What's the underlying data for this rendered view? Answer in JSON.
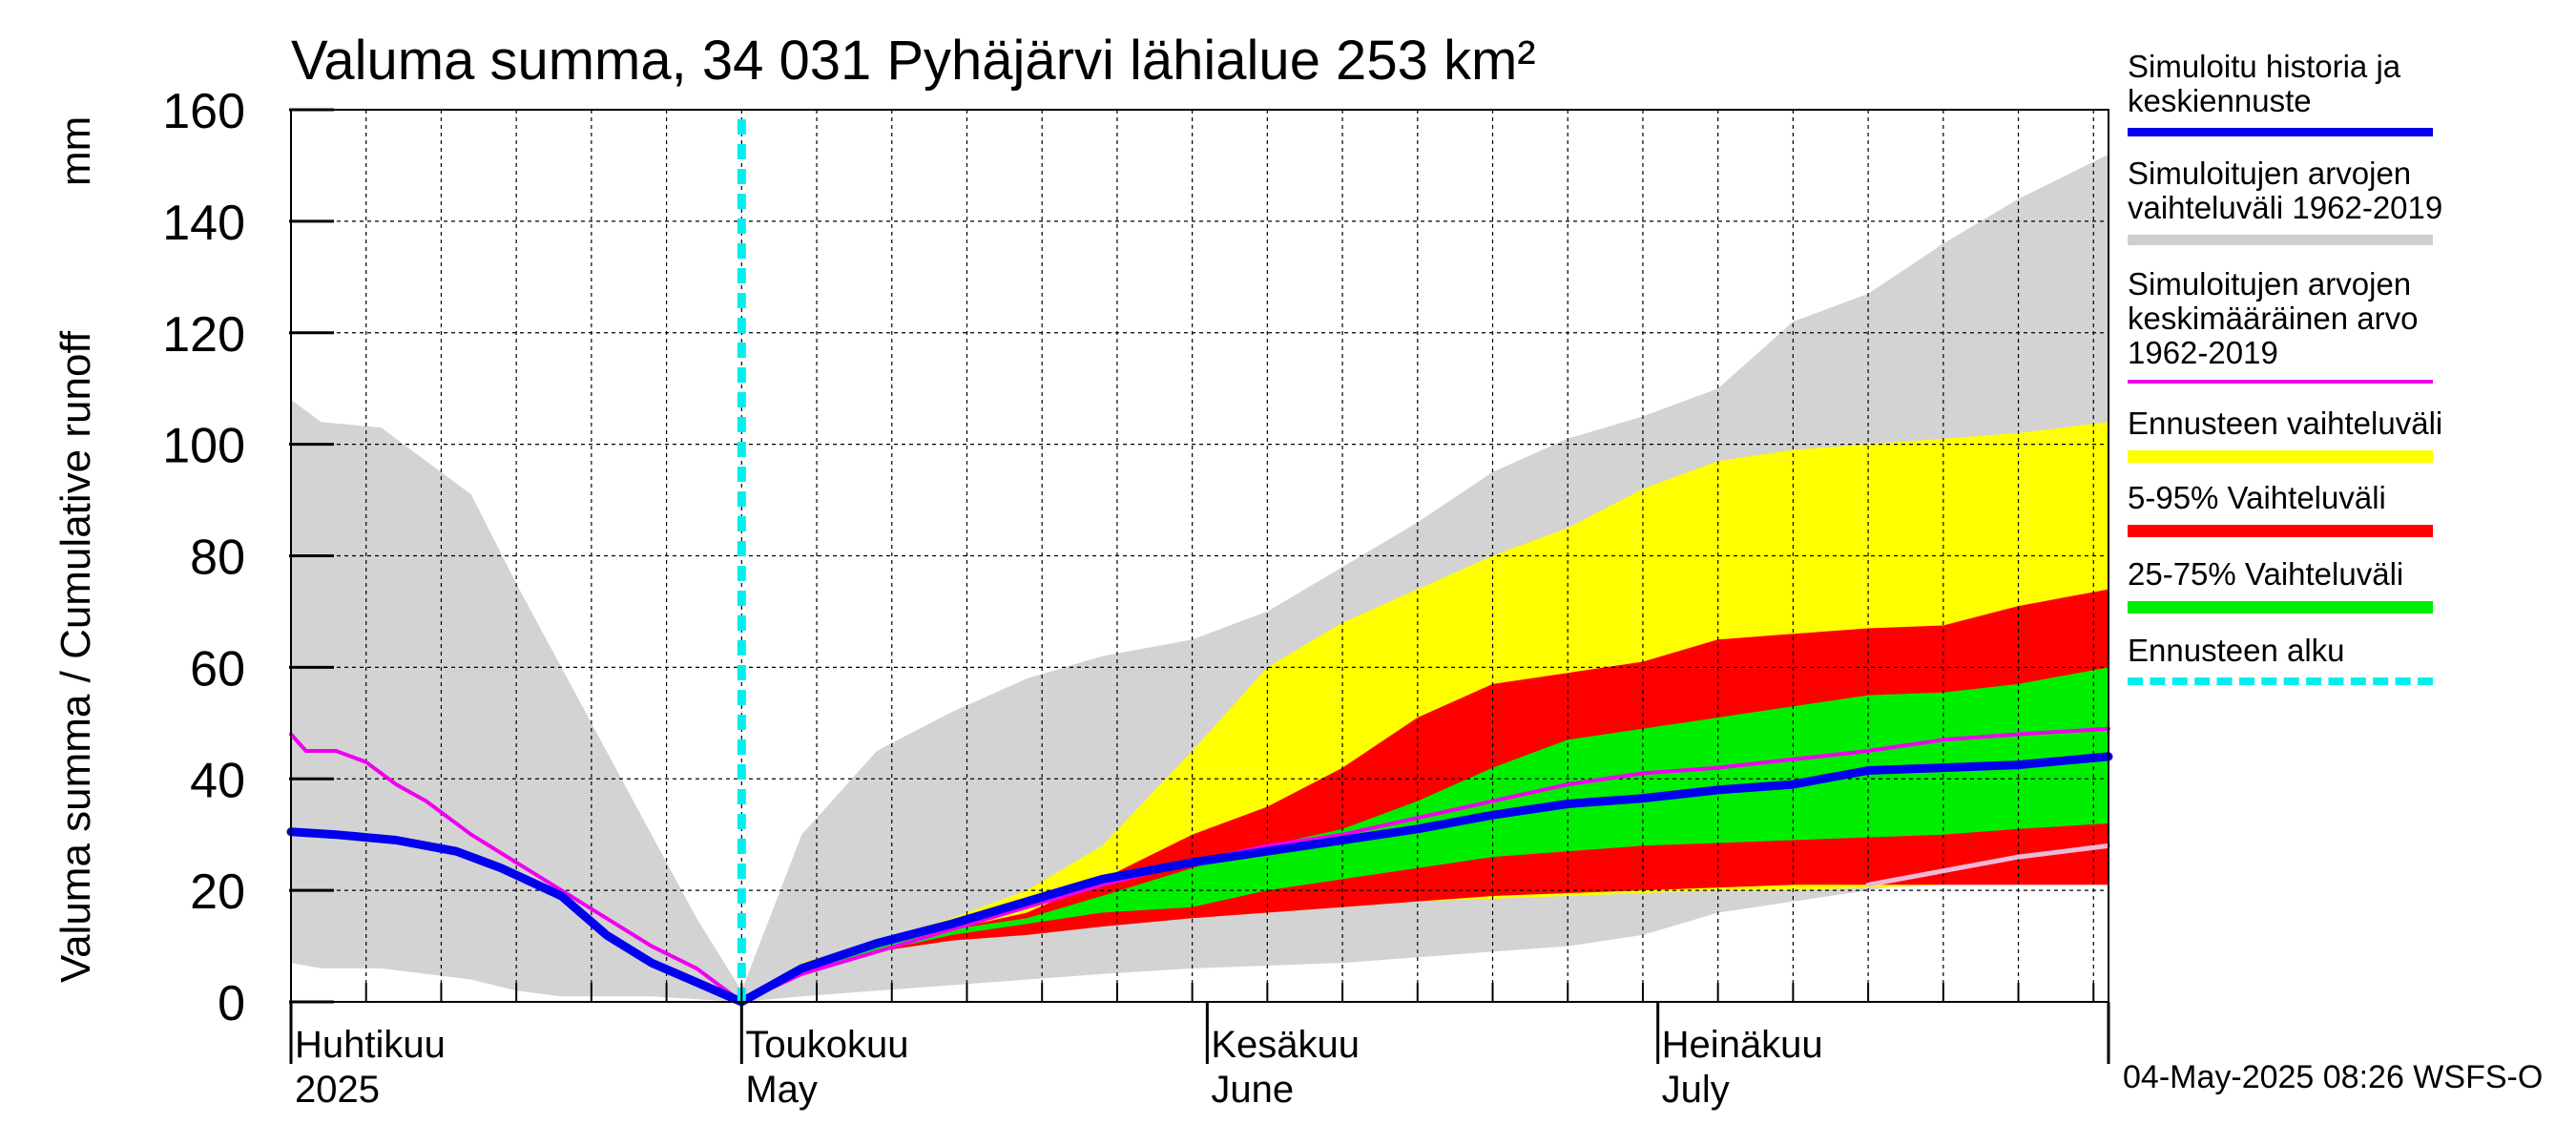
{
  "title": "Valuma summa, 34 031 Pyhäjärvi lähialue 253 km²",
  "ylabel": "Valuma summa / Cumulative runoff",
  "yunit": "mm",
  "timestamp": "04-May-2025 08:26 WSFS-O",
  "legend": [
    {
      "label": "Simuloitu historia ja\nkeskiennuste",
      "color": "#0000ee",
      "style": "solid"
    },
    {
      "label": "Simuloitujen arvojen\nvaihteluväli 1962-2019",
      "color": "#cfcfcf",
      "style": "solid"
    },
    {
      "label": "Simuloitujen arvojen\nkeskimääräinen arvo\n   1962-2019",
      "color": "#ee00ee",
      "style": "thin"
    },
    {
      "label": "Ennusteen vaihteluväli",
      "color": "#ffff00",
      "style": "solid"
    },
    {
      "label": "5-95% Vaihteluväli",
      "color": "#ff0000",
      "style": "solid"
    },
    {
      "label": "25-75% Vaihteluväli",
      "color": "#00ee00",
      "style": "solid"
    },
    {
      "label": "Ennusteen alku",
      "color": "#00eeee",
      "style": "dashed"
    }
  ],
  "chart_data": {
    "type": "area",
    "title": "Valuma summa, 34 031 Pyhäjärvi lähialue 253 km²",
    "ylabel": "Valuma summa / Cumulative runoff    mm",
    "ylim": [
      0,
      160
    ],
    "yticks": [
      0,
      20,
      40,
      60,
      80,
      100,
      120,
      140,
      160
    ],
    "xlim": [
      "2025-04-01",
      "2025-07-31"
    ],
    "x_month_labels": [
      {
        "date": "2025-04-01",
        "fi": "Huhtikuu",
        "en": "2025"
      },
      {
        "date": "2025-05-01",
        "fi": "Toukokuu",
        "en": "May"
      },
      {
        "date": "2025-06-01",
        "fi": "Kesäkuu",
        "en": "June"
      },
      {
        "date": "2025-07-01",
        "fi": "Heinäkuu",
        "en": "July"
      }
    ],
    "grid": true,
    "legend_position": "right",
    "forecast_start": "2025-05-01",
    "series": [
      {
        "name": "Simuloitujen arvojen vaihteluväli 1962-2019",
        "kind": "band",
        "color": "#d3d3d3",
        "x": [
          "2025-04-01",
          "2025-04-03",
          "2025-04-07",
          "2025-04-10",
          "2025-04-13",
          "2025-04-16",
          "2025-04-19",
          "2025-04-22",
          "2025-04-25",
          "2025-04-28",
          "2025-05-01",
          "2025-05-05",
          "2025-05-10",
          "2025-05-15",
          "2025-05-20",
          "2025-05-25",
          "2025-05-31",
          "2025-06-05",
          "2025-06-10",
          "2025-06-15",
          "2025-06-20",
          "2025-06-25",
          "2025-06-30",
          "2025-07-05",
          "2025-07-10",
          "2025-07-15",
          "2025-07-20",
          "2025-07-25",
          "2025-07-31"
        ],
        "low": [
          7,
          6,
          6,
          5,
          4,
          2,
          1,
          1,
          1,
          0.5,
          0,
          1,
          2,
          3,
          4,
          5,
          6,
          6.5,
          7,
          8,
          9,
          10,
          12,
          16,
          18,
          20,
          22,
          24,
          27
        ],
        "high": [
          108,
          104,
          103,
          97,
          91,
          75,
          60,
          45,
          30,
          15,
          2,
          30,
          45,
          52,
          58,
          62,
          65,
          70,
          78,
          86,
          95,
          101,
          105,
          110,
          122,
          127,
          136,
          144,
          152
        ]
      },
      {
        "name": "Ennusteen vaihteluväli",
        "kind": "band",
        "color": "#ffff00",
        "x": [
          "2025-05-01",
          "2025-05-05",
          "2025-05-10",
          "2025-05-15",
          "2025-05-20",
          "2025-05-25",
          "2025-05-31",
          "2025-06-05",
          "2025-06-10",
          "2025-06-15",
          "2025-06-20",
          "2025-06-25",
          "2025-06-30",
          "2025-07-05",
          "2025-07-10",
          "2025-07-15",
          "2025-07-20",
          "2025-07-25",
          "2025-07-31"
        ],
        "low": [
          0,
          5,
          9,
          11,
          13,
          14,
          15,
          16,
          17,
          18,
          18.5,
          19,
          19.5,
          20,
          20,
          20.5,
          21,
          21,
          21
        ],
        "high": [
          0,
          7,
          11,
          15,
          20,
          28,
          45,
          60,
          68,
          74,
          80,
          85,
          92,
          97,
          99,
          100,
          101,
          102,
          104
        ]
      },
      {
        "name": "5-95% Vaihteluväli",
        "kind": "band",
        "color": "#ff0000",
        "x": [
          "2025-05-01",
          "2025-05-05",
          "2025-05-10",
          "2025-05-15",
          "2025-05-20",
          "2025-05-25",
          "2025-05-31",
          "2025-06-05",
          "2025-06-10",
          "2025-06-15",
          "2025-06-20",
          "2025-06-25",
          "2025-06-30",
          "2025-07-05",
          "2025-07-10",
          "2025-07-15",
          "2025-07-20",
          "2025-07-25",
          "2025-07-31"
        ],
        "low": [
          0,
          5,
          9,
          11,
          12,
          13.5,
          15,
          16,
          17,
          18,
          19,
          19.5,
          20,
          20.5,
          21,
          21,
          21,
          21,
          21
        ],
        "high": [
          0,
          6,
          10,
          13,
          16,
          22,
          30,
          35,
          42,
          51,
          57,
          59,
          61,
          65,
          66,
          67,
          67.5,
          71,
          74
        ]
      },
      {
        "name": "25-75% Vaihteluväli",
        "kind": "band",
        "color": "#00ee00",
        "x": [
          "2025-05-01",
          "2025-05-05",
          "2025-05-10",
          "2025-05-15",
          "2025-05-20",
          "2025-05-25",
          "2025-05-31",
          "2025-06-05",
          "2025-06-10",
          "2025-06-15",
          "2025-06-20",
          "2025-06-25",
          "2025-06-30",
          "2025-07-05",
          "2025-07-10",
          "2025-07-15",
          "2025-07-20",
          "2025-07-25",
          "2025-07-31"
        ],
        "low": [
          0,
          5.5,
          9,
          12,
          14,
          16,
          17,
          20,
          22,
          24,
          26,
          27,
          28,
          28.5,
          29,
          29.5,
          30,
          31,
          32
        ],
        "high": [
          0,
          6,
          10,
          13,
          15,
          19,
          24,
          28,
          31,
          36,
          42,
          47,
          49,
          51,
          53,
          55,
          55.5,
          57,
          60
        ]
      },
      {
        "name": "Simuloitujen arvojen keskimääräinen arvo 1962-2019",
        "kind": "line",
        "color": "#ee00ee",
        "width": 4,
        "x": [
          "2025-04-01",
          "2025-04-02",
          "2025-04-04",
          "2025-04-06",
          "2025-04-08",
          "2025-04-10",
          "2025-04-13",
          "2025-04-16",
          "2025-04-19",
          "2025-04-22",
          "2025-04-25",
          "2025-04-28",
          "2025-05-01",
          "2025-05-05",
          "2025-05-10",
          "2025-05-15",
          "2025-05-20",
          "2025-05-25",
          "2025-05-31",
          "2025-06-05",
          "2025-06-10",
          "2025-06-15",
          "2025-06-20",
          "2025-06-25",
          "2025-06-30",
          "2025-07-05",
          "2025-07-10",
          "2025-07-15",
          "2025-07-20",
          "2025-07-25",
          "2025-07-31"
        ],
        "y": [
          48,
          45,
          45,
          43,
          39,
          36,
          30,
          25,
          20,
          15,
          10,
          6,
          0,
          5,
          9,
          13,
          17,
          21,
          25,
          28,
          30,
          33,
          36,
          39,
          41,
          42,
          43.5,
          45,
          47,
          48,
          49
        ]
      },
      {
        "name": "Simuloitu historia ja keskiennuste",
        "kind": "line",
        "color": "#0000ee",
        "width": 9,
        "x": [
          "2025-04-01",
          "2025-04-04",
          "2025-04-08",
          "2025-04-12",
          "2025-04-15",
          "2025-04-19",
          "2025-04-22",
          "2025-04-25",
          "2025-04-28",
          "2025-05-01",
          "2025-05-05",
          "2025-05-10",
          "2025-05-15",
          "2025-05-20",
          "2025-05-25",
          "2025-05-31",
          "2025-06-05",
          "2025-06-10",
          "2025-06-15",
          "2025-06-20",
          "2025-06-25",
          "2025-06-30",
          "2025-07-05",
          "2025-07-10",
          "2025-07-15",
          "2025-07-20",
          "2025-07-25",
          "2025-07-31"
        ],
        "y": [
          30.5,
          30,
          29,
          27,
          24,
          19,
          12,
          7,
          3.5,
          0,
          6,
          10.5,
          14,
          18,
          22,
          25,
          27,
          29,
          31,
          33.5,
          35.5,
          36.5,
          38,
          39,
          41.5,
          42,
          42.5,
          44
        ]
      },
      {
        "name": "lower band edge",
        "kind": "line",
        "color": "#f0b8d8",
        "width": 5,
        "x": [
          "2025-07-15",
          "2025-07-20",
          "2025-07-25",
          "2025-07-31"
        ],
        "y": [
          21,
          23.5,
          26,
          28
        ]
      }
    ]
  }
}
